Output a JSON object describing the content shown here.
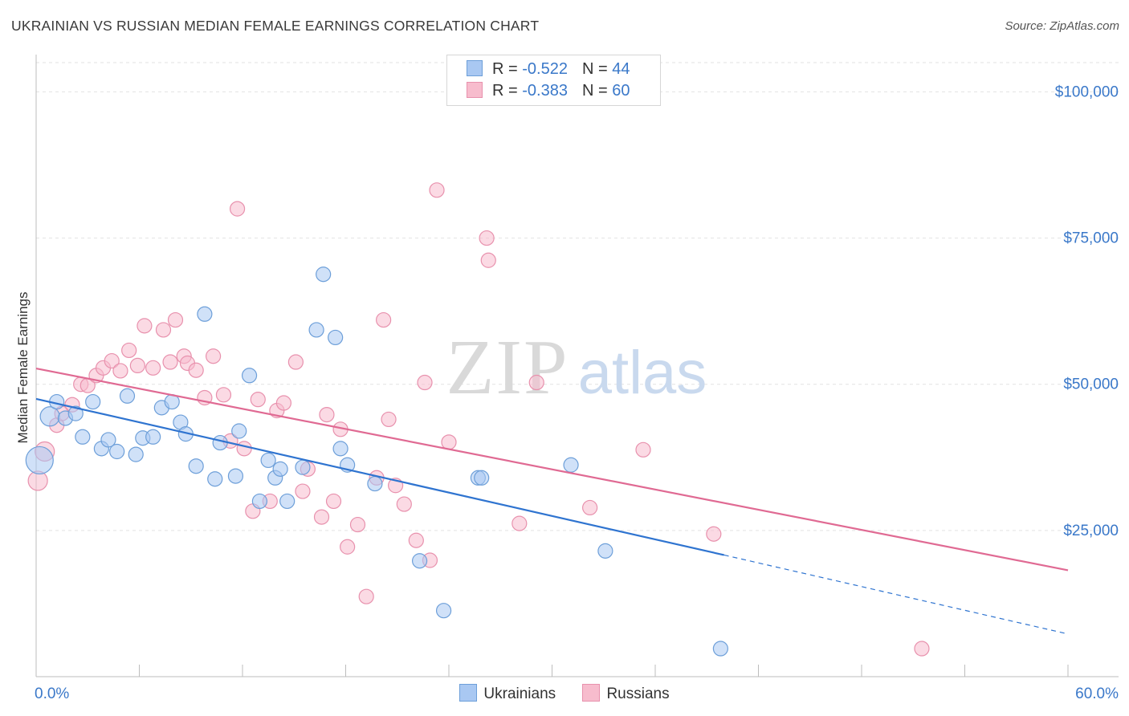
{
  "title": "UKRAINIAN VS RUSSIAN MEDIAN FEMALE EARNINGS CORRELATION CHART",
  "source": "Source: ZipAtlas.com",
  "colors": {
    "ukrainians_fill": "#a9c8f2",
    "ukrainians_stroke": "#6d9fd9",
    "ukrainians_line": "#2f74d0",
    "russians_fill": "#f7bccd",
    "russians_stroke": "#e891ad",
    "russians_line": "#e06a93",
    "axis_label": "#3a78c9"
  },
  "legend_top": {
    "row1": {
      "r_label": "R = ",
      "r_value": "-0.522",
      "n_label": "N = ",
      "n_value": "44"
    },
    "row2": {
      "r_label": "R = ",
      "r_value": "-0.383",
      "n_label": "N = ",
      "n_value": "60"
    }
  },
  "watermark": {
    "zip": "ZIP",
    "atlas": "atlas"
  },
  "chart_data": {
    "type": "scatter",
    "title": "UKRAINIAN VS RUSSIAN MEDIAN FEMALE EARNINGS CORRELATION CHART",
    "xlabel": "",
    "ylabel": "Median Female Earnings",
    "xlim": [
      0,
      60
    ],
    "ylim": [
      0,
      105000
    ],
    "x_tick_labels": [
      "0.0%",
      "60.0%"
    ],
    "y_ticks": [
      25000,
      50000,
      75000,
      100000
    ],
    "y_tick_labels": [
      "$25,000",
      "$50,000",
      "$75,000",
      "$100,000"
    ],
    "grid": true,
    "legend_position": "top-center",
    "series": [
      {
        "name": "Ukrainians",
        "r": -0.522,
        "n": 44,
        "trend": {
          "x0": 0,
          "y0": 47500,
          "x1": 40,
          "y1": 20800,
          "dashed_to_x": 60,
          "dashed_to_y": 7300
        },
        "points": [
          [
            0.2,
            37000,
            3
          ],
          [
            0.8,
            44500,
            2
          ],
          [
            1.2,
            47000,
            1
          ],
          [
            1.7,
            44200,
            1
          ],
          [
            2.3,
            45000,
            1
          ],
          [
            2.7,
            41000,
            1
          ],
          [
            3.3,
            47000,
            1
          ],
          [
            3.8,
            39000,
            1
          ],
          [
            4.2,
            40500,
            1
          ],
          [
            4.7,
            38500,
            1
          ],
          [
            5.3,
            48000,
            1
          ],
          [
            5.8,
            38000,
            1
          ],
          [
            6.2,
            40800,
            1
          ],
          [
            6.8,
            41000,
            1
          ],
          [
            7.3,
            46000,
            1
          ],
          [
            7.9,
            47000,
            1
          ],
          [
            8.4,
            43500,
            1
          ],
          [
            8.7,
            41500,
            1
          ],
          [
            9.3,
            36000,
            1
          ],
          [
            9.8,
            62000,
            1
          ],
          [
            10.4,
            33800,
            1
          ],
          [
            10.7,
            40000,
            1
          ],
          [
            11.6,
            34300,
            1
          ],
          [
            11.8,
            42000,
            1
          ],
          [
            12.4,
            51500,
            1
          ],
          [
            13.0,
            30000,
            1
          ],
          [
            13.5,
            37000,
            1
          ],
          [
            13.9,
            34000,
            1
          ],
          [
            14.2,
            35500,
            1
          ],
          [
            14.6,
            30000,
            1
          ],
          [
            15.5,
            35800,
            1
          ],
          [
            16.3,
            59300,
            1
          ],
          [
            16.7,
            68800,
            1
          ],
          [
            17.4,
            58000,
            1
          ],
          [
            17.7,
            39000,
            1
          ],
          [
            18.1,
            36200,
            1
          ],
          [
            19.7,
            33000,
            1
          ],
          [
            22.3,
            19800,
            1
          ],
          [
            23.7,
            11300,
            1
          ],
          [
            25.7,
            34000,
            1
          ],
          [
            25.9,
            34000,
            1
          ],
          [
            31.1,
            36200,
            1
          ],
          [
            33.1,
            21500,
            1
          ],
          [
            39.8,
            4800,
            1
          ]
        ]
      },
      {
        "name": "Russians",
        "r": -0.383,
        "n": 60,
        "trend": {
          "x0": 0,
          "y0": 52700,
          "x1": 60,
          "y1": 18200
        },
        "points": [
          [
            0.1,
            33500,
            2
          ],
          [
            0.5,
            38500,
            2
          ],
          [
            1.2,
            43000,
            1
          ],
          [
            1.5,
            45000,
            1
          ],
          [
            2.1,
            46500,
            1
          ],
          [
            2.6,
            50000,
            1
          ],
          [
            3.0,
            49800,
            1
          ],
          [
            3.5,
            51500,
            1
          ],
          [
            3.9,
            52800,
            1
          ],
          [
            4.4,
            54000,
            1
          ],
          [
            4.9,
            52300,
            1
          ],
          [
            5.4,
            55800,
            1
          ],
          [
            5.9,
            53200,
            1
          ],
          [
            6.3,
            60000,
            1
          ],
          [
            6.8,
            52800,
            1
          ],
          [
            7.4,
            59300,
            1
          ],
          [
            7.8,
            53800,
            1
          ],
          [
            8.1,
            61000,
            1
          ],
          [
            8.6,
            54800,
            1
          ],
          [
            8.8,
            53600,
            1
          ],
          [
            9.3,
            52400,
            1
          ],
          [
            9.8,
            47700,
            1
          ],
          [
            10.3,
            54800,
            1
          ],
          [
            10.9,
            48200,
            1
          ],
          [
            11.3,
            40300,
            1
          ],
          [
            11.7,
            80000,
            1
          ],
          [
            12.1,
            39000,
            1
          ],
          [
            12.6,
            28300,
            1
          ],
          [
            12.9,
            47400,
            1
          ],
          [
            13.6,
            30000,
            1
          ],
          [
            14.0,
            45500,
            1
          ],
          [
            14.4,
            46800,
            1
          ],
          [
            15.1,
            53800,
            1
          ],
          [
            15.5,
            31700,
            1
          ],
          [
            15.8,
            35500,
            1
          ],
          [
            16.6,
            27300,
            1
          ],
          [
            16.9,
            44800,
            1
          ],
          [
            17.3,
            30000,
            1
          ],
          [
            17.7,
            42300,
            1
          ],
          [
            18.1,
            22200,
            1
          ],
          [
            18.7,
            26000,
            1
          ],
          [
            19.2,
            13700,
            1
          ],
          [
            19.8,
            34000,
            1
          ],
          [
            20.2,
            61000,
            1
          ],
          [
            20.5,
            44000,
            1
          ],
          [
            20.9,
            32700,
            1
          ],
          [
            21.4,
            29500,
            1
          ],
          [
            22.1,
            23300,
            1
          ],
          [
            22.6,
            50300,
            1
          ],
          [
            22.9,
            19900,
            1
          ],
          [
            23.3,
            83200,
            1
          ],
          [
            24.0,
            40100,
            1
          ],
          [
            26.2,
            75000,
            1
          ],
          [
            26.3,
            71200,
            1
          ],
          [
            28.1,
            26200,
            1
          ],
          [
            29.1,
            50300,
            1
          ],
          [
            32.2,
            28900,
            1
          ],
          [
            35.3,
            38800,
            1
          ],
          [
            39.4,
            24400,
            1
          ],
          [
            51.5,
            4800,
            1
          ]
        ]
      }
    ]
  },
  "bottom_legend": {
    "item1": "Ukrainians",
    "item2": "Russians"
  }
}
